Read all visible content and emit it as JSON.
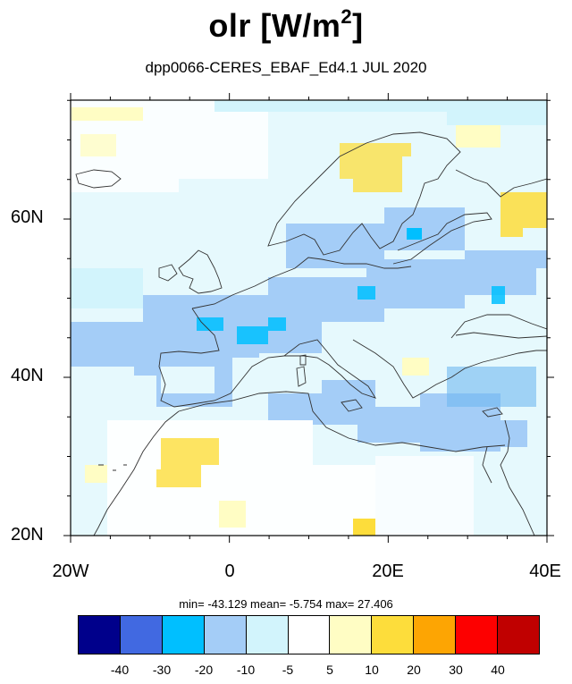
{
  "title": {
    "main": "olr [W/m",
    "sup": "2",
    "end": "]"
  },
  "subtitle": "dpp0066-CERES_EBAF_Ed4.1  JUL 2020",
  "axes": {
    "lat_labels": [
      "60N",
      "40N",
      "20N"
    ],
    "lon_labels": [
      "20W",
      "0",
      "20E",
      "40E"
    ]
  },
  "stats": {
    "text": "min= -43.129   mean=  -5.754   max=  27.406"
  },
  "colorbar": {
    "colors": [
      "#00008b",
      "#4169e1",
      "#00bfff",
      "#a4cdf7",
      "#d2f4fc",
      "#ffffff",
      "#fffdc4",
      "#fddd3b",
      "#fda503",
      "#fd0000",
      "#c00000"
    ],
    "labels": [
      "-40",
      "-30",
      "-20",
      "-10",
      "-5",
      "5",
      "10",
      "20",
      "30",
      "40"
    ]
  },
  "palette": {
    "light_cyan": "#d2f4fc",
    "light_blue": "#a4cdf7",
    "medium_blue": "#6fb7f0",
    "cyan": "#00bfff",
    "pale_yellow": "#fffdc4",
    "yellow": "#fddd3b",
    "coast": "#333333"
  }
}
